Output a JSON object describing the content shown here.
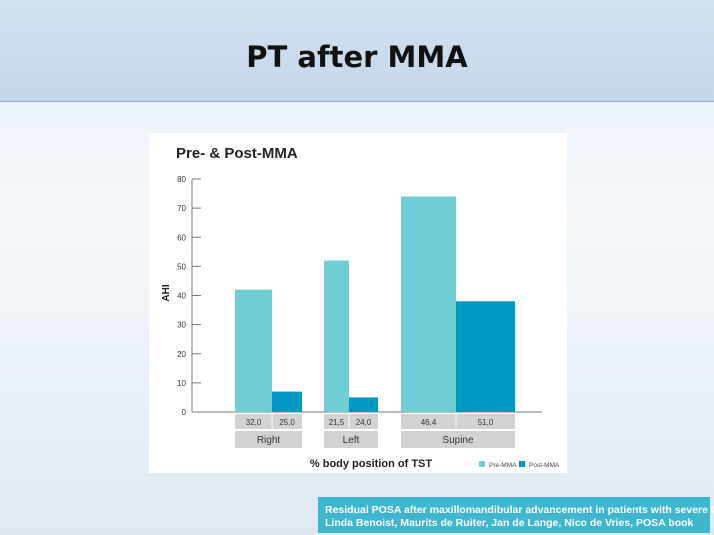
{
  "slide": {
    "title": "PT after MMA",
    "citation": {
      "line1": "Residual POSA after maxillomandibular advancement in patients with severe OSA",
      "line2": "Linda Benoist, Maurits de Ruiter, Jan de Lange, Nico de Vries, POSA book"
    }
  },
  "colors": {
    "pre": "#6fcdd6",
    "post": "#0099c4",
    "label_box": "#d2d2d2"
  },
  "chart_data": {
    "type": "bar",
    "title": "Pre- & Post-MMA",
    "xlabel": "% body position of TST",
    "ylabel": "AHI",
    "ylim": [
      0,
      80
    ],
    "yticks": [
      "0",
      "10",
      "20",
      "30",
      "40",
      "50",
      "60",
      "70",
      "80"
    ],
    "categories": [
      "Right",
      "Left",
      "Supine"
    ],
    "series": [
      {
        "name": "Pre-MMA",
        "values": [
          42,
          52,
          74
        ],
        "pct_labels": [
          "32,0",
          "21,5",
          "46,4"
        ]
      },
      {
        "name": "Post-MMA",
        "values": [
          7,
          5,
          38
        ],
        "pct_labels": [
          "25,0",
          "24,0",
          "51,0"
        ]
      }
    ]
  }
}
